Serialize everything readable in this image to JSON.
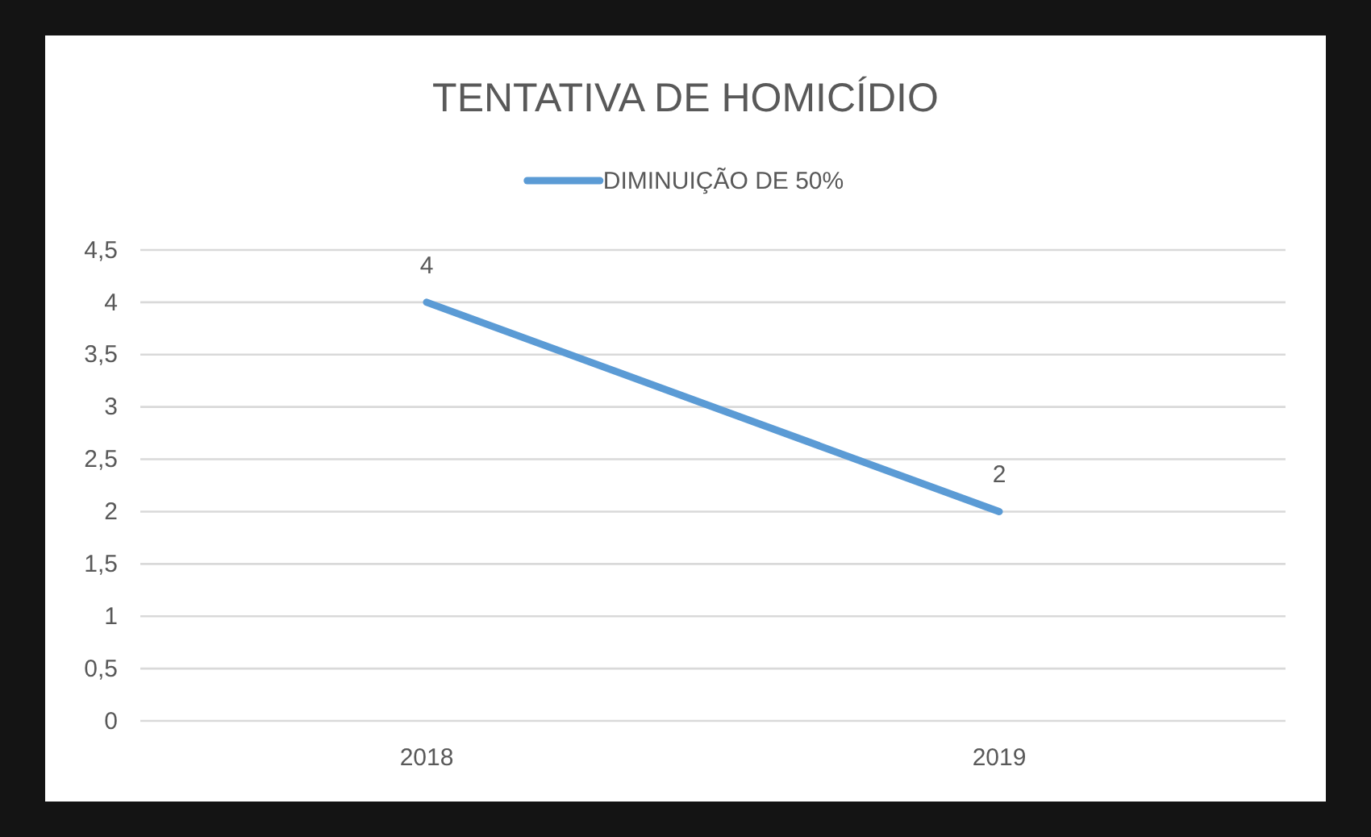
{
  "chart_data": {
    "type": "line",
    "title": "TENTATIVA DE HOMICÍDIO",
    "categories": [
      "2018",
      "2019"
    ],
    "series": [
      {
        "name": "DIMINUIÇÃO DE 50%",
        "color": "#5b9bd5",
        "values": [
          4,
          2
        ]
      }
    ],
    "ylim": [
      0,
      4.5
    ],
    "yticks": [
      0,
      {
        "value": 0.5,
        "label": "0,5"
      },
      1,
      {
        "value": 1.5,
        "label": "1,5"
      },
      2,
      {
        "value": 2.5,
        "label": "2,5"
      },
      3,
      {
        "value": 3.5,
        "label": "3,5"
      },
      4,
      {
        "value": 4.5,
        "label": "4,5"
      }
    ],
    "grid": "y",
    "legend": "top",
    "marker": "none",
    "line_style": "solid",
    "data_labels": true
  }
}
